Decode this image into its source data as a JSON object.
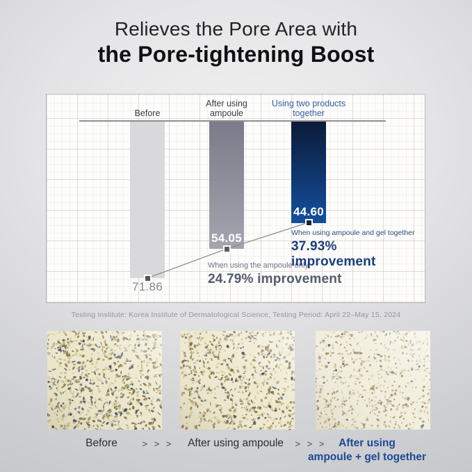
{
  "title": {
    "line1": "Relieves the Pore Area with",
    "line2": "the Pore-tightening Boost"
  },
  "chart_data": {
    "type": "bar",
    "orientation": "hanging-bars-from-top-baseline",
    "categories": [
      "Before",
      "After using ampoule",
      "Using two products together"
    ],
    "category_lines": [
      {
        "l1": "Before",
        "l2": ""
      },
      {
        "l1": "After using",
        "l2": "ampoule"
      },
      {
        "l1": "Using two products",
        "l2": "together"
      }
    ],
    "values": [
      71.86,
      54.05,
      44.6
    ],
    "values_text": [
      "71.86",
      "54.05",
      "44.60"
    ],
    "bar_colors": [
      [
        "#d9d9db",
        "#d9d9db"
      ],
      [
        "#7b7b89",
        "#a5a5b0"
      ],
      [
        "#0a1b38",
        "#144f9e"
      ]
    ],
    "marker_colors": [
      "#55565c",
      "#5a5b61",
      "#15254a"
    ],
    "connector_color": "#8f8f90",
    "annotations": [
      {
        "caption": "When using the ampoule only",
        "pct": "24.79%",
        "text": " improvement"
      },
      {
        "caption": "When using ampoule and gel together",
        "pct": "37.93%",
        "text": " improvement"
      }
    ],
    "legend": "none",
    "grid": "graph-paper"
  },
  "footnote": "Testing Institute: Korea Institute of Dermatological Science, Testing Period: April 22–May 15, 2024",
  "comparison": {
    "separator": "> > >",
    "labels": {
      "before": "Before",
      "after_ampoule": "After using ampoule",
      "after_both_line1": "After using",
      "after_both_line2": "ampoule + gel together"
    },
    "textures": [
      {
        "name": "skin-before",
        "base": "#ece7cb",
        "shade": "#8a7d55",
        "seed": 11,
        "count": 780,
        "size_min": 1.0,
        "size_rand": 2.3,
        "palette": [
          [
            "#333a58",
            0.3
          ],
          [
            "#6e6636",
            0.2
          ],
          [
            "#8a6d3a",
            0.2
          ],
          [
            "#c9bd85",
            0.3
          ]
        ]
      },
      {
        "name": "skin-after-ampoule",
        "base": "#eee9cf",
        "shade": "#8f8258",
        "seed": 22,
        "count": 720,
        "size_min": 0.9,
        "size_rand": 2.1,
        "palette": [
          [
            "#39405c",
            0.18
          ],
          [
            "#77693a",
            0.26
          ],
          [
            "#8f7342",
            0.26
          ],
          [
            "#cfc28c",
            0.3
          ]
        ]
      },
      {
        "name": "skin-after-both",
        "base": "#f2eedd",
        "shade": "#9a8f68",
        "seed": 33,
        "count": 620,
        "size_min": 0.7,
        "size_rand": 1.7,
        "palette": [
          [
            "#4a5068",
            0.08
          ],
          [
            "#9c9270",
            0.3
          ],
          [
            "#a08a58",
            0.22
          ],
          [
            "#cabf95",
            0.4
          ]
        ]
      }
    ]
  },
  "colors": {
    "accent_blue": "#1c3d7e",
    "label_blue": "#3a5da2",
    "slate_gray": "#535b6e",
    "value_gray": "#85878d"
  }
}
